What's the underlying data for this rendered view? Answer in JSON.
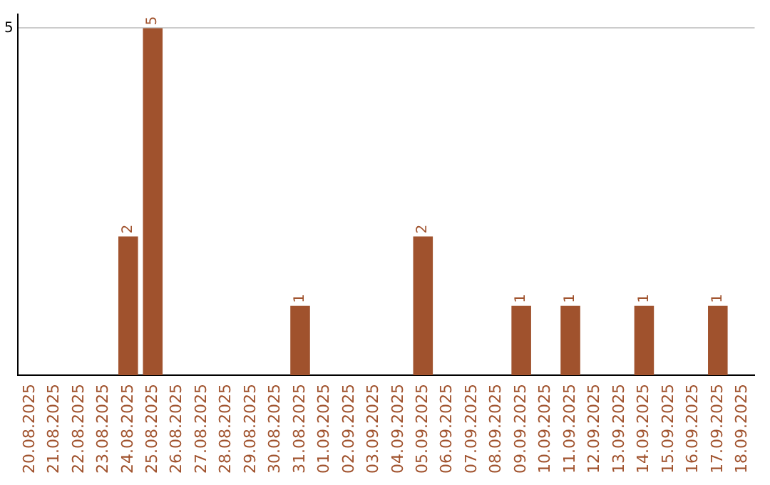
{
  "chart_data": {
    "type": "bar",
    "categories": [
      "20.08.2025",
      "21.08.2025",
      "22.08.2025",
      "23.08.2025",
      "24.08.2025",
      "25.08.2025",
      "26.08.2025",
      "27.08.2025",
      "28.08.2025",
      "29.08.2025",
      "30.08.2025",
      "31.08.2025",
      "01.09.2025",
      "02.09.2025",
      "03.09.2025",
      "04.09.2025",
      "05.09.2025",
      "06.09.2025",
      "07.09.2025",
      "08.09.2025",
      "09.09.2025",
      "10.09.2025",
      "11.09.2025",
      "12.09.2025",
      "13.09.2025",
      "14.09.2025",
      "15.09.2025",
      "16.09.2025",
      "17.09.2025",
      "18.09.2025"
    ],
    "values": [
      0,
      0,
      0,
      0,
      2,
      5,
      0,
      0,
      0,
      0,
      0,
      1,
      0,
      0,
      0,
      0,
      2,
      0,
      0,
      0,
      1,
      0,
      1,
      0,
      0,
      1,
      0,
      0,
      1,
      0
    ],
    "value_labels": [
      null,
      null,
      null,
      null,
      "2",
      "5",
      null,
      null,
      null,
      null,
      null,
      "1",
      null,
      null,
      null,
      null,
      "2",
      null,
      null,
      null,
      "1",
      null,
      "1",
      null,
      null,
      "1",
      null,
      null,
      "1",
      null
    ],
    "color": "#a0522d",
    "ylim": [
      0,
      5.2
    ],
    "yticks": [
      5
    ],
    "grid": "y",
    "legend": false
  }
}
